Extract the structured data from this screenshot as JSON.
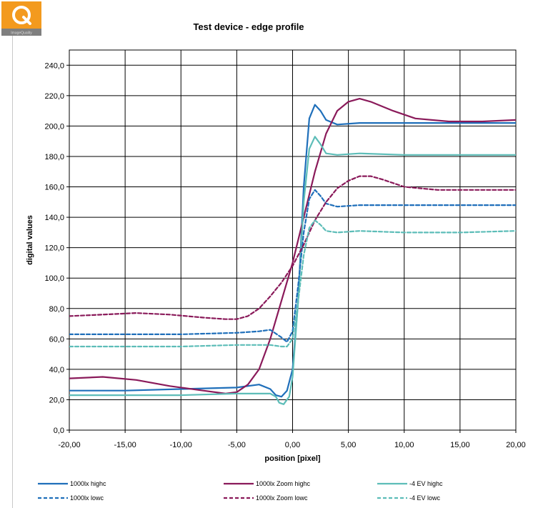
{
  "logo": {
    "caption": "ImageQuality",
    "colors": {
      "orange": "#f39a1e",
      "gray": "#7f7f7f"
    }
  },
  "chart_data": {
    "type": "line",
    "title": "Test device - edge profile",
    "xlabel": "position [pixel]",
    "ylabel": "digital values",
    "xlim": [
      -20,
      20
    ],
    "ylim": [
      0,
      250
    ],
    "x_ticks": [
      "-20,00",
      "-15,00",
      "-10,00",
      "-5,00",
      "0,00",
      "5,00",
      "10,00",
      "15,00",
      "20,00"
    ],
    "y_ticks": [
      "0,0",
      "20,0",
      "40,0",
      "60,0",
      "80,0",
      "100,0",
      "120,0",
      "140,0",
      "160,0",
      "180,0",
      "200,0",
      "220,0",
      "240,0"
    ],
    "grid": true,
    "legend_position": "bottom",
    "series": [
      {
        "name": "1000lx highc",
        "color": "#1f6fba",
        "style": "solid",
        "points": [
          [
            -20,
            26
          ],
          [
            -15,
            26
          ],
          [
            -10,
            27
          ],
          [
            -5,
            28
          ],
          [
            -3,
            30
          ],
          [
            -2,
            27
          ],
          [
            -1.5,
            23
          ],
          [
            -1,
            22
          ],
          [
            -0.5,
            26
          ],
          [
            0,
            40
          ],
          [
            0.5,
            85
          ],
          [
            1,
            160
          ],
          [
            1.5,
            205
          ],
          [
            2,
            214
          ],
          [
            2.5,
            210
          ],
          [
            3,
            204
          ],
          [
            4,
            201
          ],
          [
            6,
            202
          ],
          [
            10,
            202
          ],
          [
            15,
            202
          ],
          [
            20,
            202
          ]
        ]
      },
      {
        "name": "1000lx Zoom highc",
        "color": "#8a1a5a",
        "style": "solid",
        "points": [
          [
            -20,
            34
          ],
          [
            -17,
            35
          ],
          [
            -14,
            33
          ],
          [
            -11,
            29
          ],
          [
            -8,
            26
          ],
          [
            -6,
            24
          ],
          [
            -5,
            25
          ],
          [
            -4,
            30
          ],
          [
            -3,
            40
          ],
          [
            -2,
            60
          ],
          [
            -1,
            85
          ],
          [
            0,
            110
          ],
          [
            1,
            140
          ],
          [
            2,
            170
          ],
          [
            3,
            195
          ],
          [
            4,
            210
          ],
          [
            5,
            216
          ],
          [
            6,
            218
          ],
          [
            7,
            216
          ],
          [
            9,
            210
          ],
          [
            11,
            205
          ],
          [
            14,
            203
          ],
          [
            17,
            203
          ],
          [
            20,
            204
          ]
        ]
      },
      {
        "name": "-4 EV highc",
        "color": "#5dbdb8",
        "style": "solid",
        "points": [
          [
            -20,
            23
          ],
          [
            -15,
            23
          ],
          [
            -10,
            23
          ],
          [
            -5,
            24
          ],
          [
            -2,
            24
          ],
          [
            -1.5,
            22
          ],
          [
            -1.2,
            18
          ],
          [
            -0.8,
            17
          ],
          [
            -0.3,
            22
          ],
          [
            0,
            35
          ],
          [
            0.5,
            85
          ],
          [
            1,
            150
          ],
          [
            1.5,
            185
          ],
          [
            2,
            193
          ],
          [
            2.5,
            188
          ],
          [
            3,
            182
          ],
          [
            4,
            181
          ],
          [
            6,
            182
          ],
          [
            10,
            181
          ],
          [
            15,
            181
          ],
          [
            20,
            181
          ]
        ]
      },
      {
        "name": "1000lx lowc",
        "color": "#1f6fba",
        "style": "dashed",
        "points": [
          [
            -20,
            63
          ],
          [
            -15,
            63
          ],
          [
            -10,
            63
          ],
          [
            -5,
            64
          ],
          [
            -3,
            65
          ],
          [
            -2,
            66
          ],
          [
            -1,
            61
          ],
          [
            -0.5,
            58
          ],
          [
            0,
            65
          ],
          [
            0.5,
            95
          ],
          [
            1,
            130
          ],
          [
            1.5,
            152
          ],
          [
            2,
            158
          ],
          [
            2.5,
            154
          ],
          [
            3,
            149
          ],
          [
            4,
            147
          ],
          [
            6,
            148
          ],
          [
            10,
            148
          ],
          [
            15,
            148
          ],
          [
            20,
            148
          ]
        ]
      },
      {
        "name": "1000lx Zoom lowc",
        "color": "#8a1a5a",
        "style": "dashed",
        "points": [
          [
            -20,
            75
          ],
          [
            -17,
            76
          ],
          [
            -14,
            77
          ],
          [
            -11,
            76
          ],
          [
            -8,
            74
          ],
          [
            -6,
            73
          ],
          [
            -5,
            73
          ],
          [
            -4,
            75
          ],
          [
            -3,
            80
          ],
          [
            -2,
            88
          ],
          [
            -1,
            97
          ],
          [
            0,
            108
          ],
          [
            1,
            122
          ],
          [
            2,
            138
          ],
          [
            3,
            150
          ],
          [
            4,
            159
          ],
          [
            5,
            164
          ],
          [
            6,
            167
          ],
          [
            7,
            167
          ],
          [
            8,
            165
          ],
          [
            10,
            160
          ],
          [
            13,
            158
          ],
          [
            16,
            158
          ],
          [
            20,
            158
          ]
        ]
      },
      {
        "name": "-4 EV lowc",
        "color": "#5dbdb8",
        "style": "dashed",
        "points": [
          [
            -20,
            55
          ],
          [
            -15,
            55
          ],
          [
            -10,
            55
          ],
          [
            -5,
            56
          ],
          [
            -2,
            56
          ],
          [
            -1,
            55
          ],
          [
            -0.5,
            55
          ],
          [
            0,
            60
          ],
          [
            0.5,
            85
          ],
          [
            1,
            115
          ],
          [
            1.5,
            133
          ],
          [
            2,
            138
          ],
          [
            2.5,
            135
          ],
          [
            3,
            131
          ],
          [
            4,
            130
          ],
          [
            6,
            131
          ],
          [
            10,
            130
          ],
          [
            15,
            130
          ],
          [
            20,
            131
          ]
        ]
      }
    ]
  }
}
